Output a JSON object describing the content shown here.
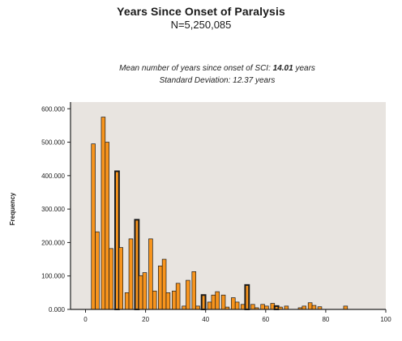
{
  "header": {
    "title": "Years Since Onset of Paralysis",
    "subtitle": "N=5,250,085"
  },
  "annotations": {
    "line1_prefix": "Mean number of years since onset of SCI: ",
    "line1_value": "14.01",
    "line1_suffix": " years",
    "line2": "Standard Deviation: 12.37 years"
  },
  "colors": {
    "bar_fill": "#f7941d",
    "bar_stroke": "#1a1a1a",
    "plot_background": "#e8e4e0"
  },
  "chart_data": {
    "type": "bar",
    "title": "Years Since Onset of Paralysis",
    "subtitle": "N=5,250,085",
    "xlabel": "",
    "ylabel": "Frequency",
    "xlim": [
      -5,
      100
    ],
    "ylim": [
      0,
      620000
    ],
    "x_ticks": [
      0,
      20,
      40,
      60,
      80,
      100
    ],
    "x_tick_labels": [
      "0",
      "20",
      "40",
      "60",
      "80",
      "100"
    ],
    "y_ticks": [
      0,
      100000,
      200000,
      300000,
      400000,
      500000,
      600000
    ],
    "y_tick_labels": [
      "0.000",
      "100.000",
      "200.000",
      "300.000",
      "400.000",
      "500.000",
      "600.000"
    ],
    "grid": false,
    "bin_width": 1.3,
    "x": [
      2.6,
      3.9,
      5.9,
      7.2,
      8.5,
      10.5,
      11.8,
      13.8,
      15.1,
      17.1,
      18.4,
      19.7,
      21.7,
      23.0,
      24.9,
      26.2,
      27.5,
      29.5,
      30.8,
      32.8,
      34.1,
      36.1,
      37.4,
      39.3,
      41.3,
      42.6,
      43.9,
      45.9,
      47.2,
      49.2,
      50.5,
      52.4,
      53.8,
      55.7,
      57.0,
      59.0,
      60.3,
      62.3,
      63.6,
      64.9,
      66.9,
      71.5,
      72.8,
      74.8,
      76.1,
      78.0,
      86.6
    ],
    "values": [
      495000,
      232000,
      575000,
      500000,
      182000,
      413000,
      185000,
      50000,
      211000,
      268000,
      101000,
      110000,
      211000,
      55000,
      130000,
      150000,
      50000,
      55000,
      78000,
      10000,
      87000,
      113000,
      10000,
      43000,
      22000,
      43000,
      53000,
      43000,
      7000,
      35000,
      22000,
      15000,
      73000,
      15000,
      5000,
      15000,
      10000,
      18000,
      10000,
      7000,
      10000,
      5000,
      10000,
      20000,
      12000,
      8000,
      10000
    ],
    "emphasized_bars": [
      5,
      9,
      23,
      32,
      38
    ]
  }
}
